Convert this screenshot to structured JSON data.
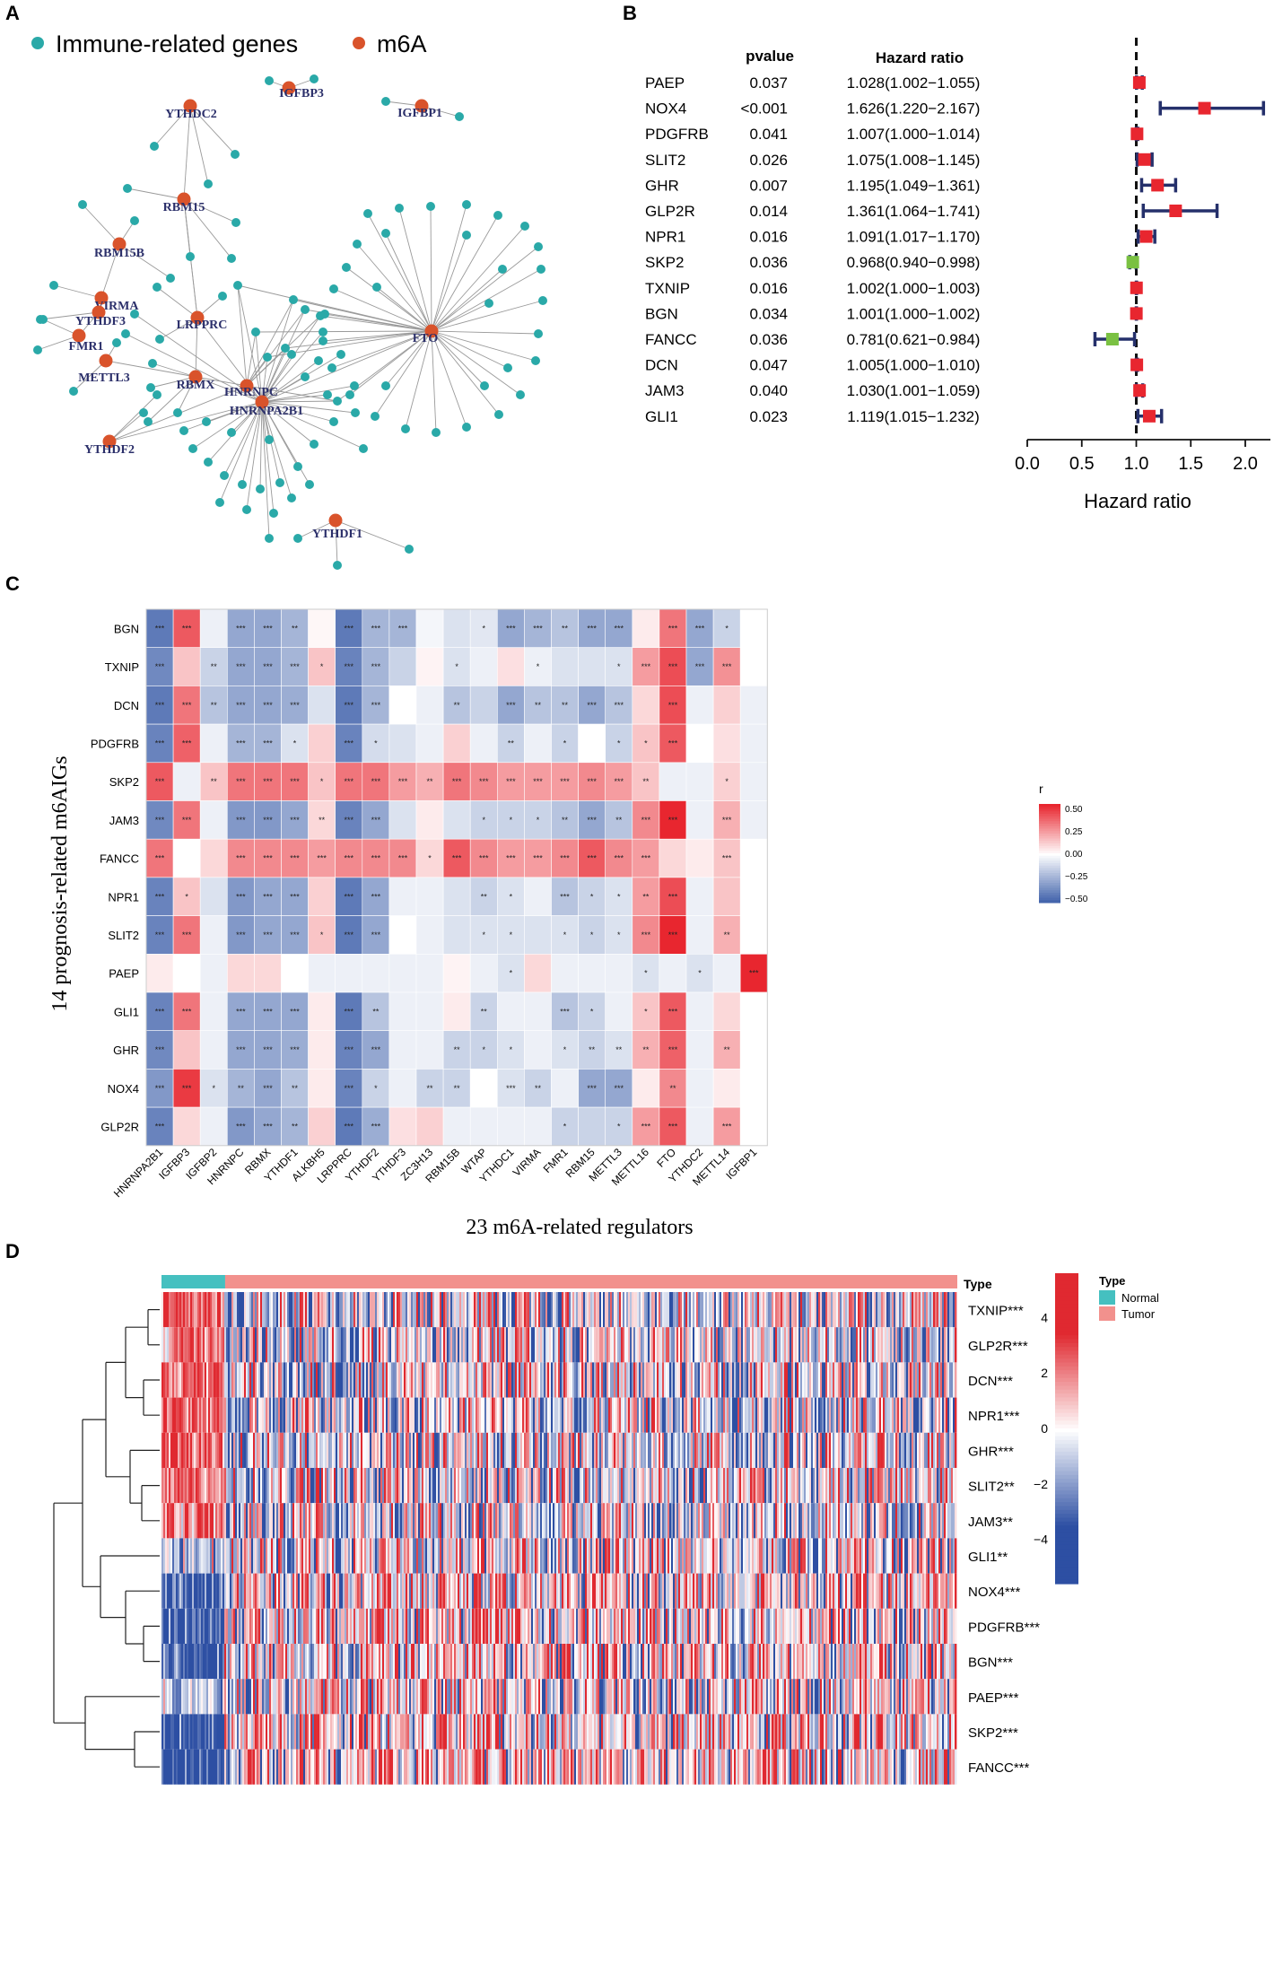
{
  "panel_letters": {
    "a": "A",
    "b": "B",
    "c": "C",
    "d": "D"
  },
  "colors": {
    "immune": "#2aa9a8",
    "m6a": "#d9532b",
    "hr_high": "#e8262f",
    "hr_low": "#7ac142",
    "ci_line": "#25306b",
    "heat_pos": "#e8262f",
    "heat_neg": "#3a5da8",
    "normal": "#45c0c0",
    "tumor": "#f2918d"
  },
  "chart_data": [
    {
      "type": "network",
      "panel": "A",
      "legend": [
        "Immune-related genes",
        "m6A"
      ],
      "nodes": [
        {
          "id": "IGFBP3",
          "group": "m6A"
        },
        {
          "id": "IGFBP1",
          "group": "m6A"
        },
        {
          "id": "YTHDC2",
          "group": "m6A"
        },
        {
          "id": "RBM15",
          "group": "m6A"
        },
        {
          "id": "RBM15B",
          "group": "m6A"
        },
        {
          "id": "VIRMA",
          "group": "m6A"
        },
        {
          "id": "YTHDF3",
          "group": "m6A"
        },
        {
          "id": "FMR1",
          "group": "m6A"
        },
        {
          "id": "METTL3",
          "group": "m6A"
        },
        {
          "id": "LRPPRC",
          "group": "m6A"
        },
        {
          "id": "RBMX",
          "group": "m6A"
        },
        {
          "id": "HNRNPC",
          "group": "m6A"
        },
        {
          "id": "HNRNPA2B1",
          "group": "m6A"
        },
        {
          "id": "YTHDF2",
          "group": "m6A"
        },
        {
          "id": "FTO",
          "group": "m6A"
        },
        {
          "id": "YTHDF1",
          "group": "m6A"
        }
      ]
    },
    {
      "type": "forest",
      "panel": "B",
      "col_headers": {
        "p": "pvalue",
        "hr": "Hazard ratio"
      },
      "xlabel": "Hazard ratio",
      "xlim": [
        0,
        2.15
      ],
      "xticks": [
        "0.0",
        "0.5",
        "1.0",
        "1.5",
        "2.0"
      ],
      "rows": [
        {
          "gene": "PAEP",
          "p": "0.037",
          "hr_text": "1.028(1.002−1.055)",
          "hr": 1.028,
          "lo": 1.002,
          "hi": 1.055
        },
        {
          "gene": "NOX4",
          "p": "<0.001",
          "hr_text": "1.626(1.220−2.167)",
          "hr": 1.626,
          "lo": 1.22,
          "hi": 2.167
        },
        {
          "gene": "PDGFRB",
          "p": "0.041",
          "hr_text": "1.007(1.000−1.014)",
          "hr": 1.007,
          "lo": 1.0,
          "hi": 1.014
        },
        {
          "gene": "SLIT2",
          "p": "0.026",
          "hr_text": "1.075(1.008−1.145)",
          "hr": 1.075,
          "lo": 1.008,
          "hi": 1.145
        },
        {
          "gene": "GHR",
          "p": "0.007",
          "hr_text": "1.195(1.049−1.361)",
          "hr": 1.195,
          "lo": 1.049,
          "hi": 1.361
        },
        {
          "gene": "GLP2R",
          "p": "0.014",
          "hr_text": "1.361(1.064−1.741)",
          "hr": 1.361,
          "lo": 1.064,
          "hi": 1.741
        },
        {
          "gene": "NPR1",
          "p": "0.016",
          "hr_text": "1.091(1.017−1.170)",
          "hr": 1.091,
          "lo": 1.017,
          "hi": 1.17
        },
        {
          "gene": "SKP2",
          "p": "0.036",
          "hr_text": "0.968(0.940−0.998)",
          "hr": 0.968,
          "lo": 0.94,
          "hi": 0.998
        },
        {
          "gene": "TXNIP",
          "p": "0.016",
          "hr_text": "1.002(1.000−1.003)",
          "hr": 1.002,
          "lo": 1.0,
          "hi": 1.003
        },
        {
          "gene": "BGN",
          "p": "0.034",
          "hr_text": "1.001(1.000−1.002)",
          "hr": 1.001,
          "lo": 1.0,
          "hi": 1.002
        },
        {
          "gene": "FANCC",
          "p": "0.036",
          "hr_text": "0.781(0.621−0.984)",
          "hr": 0.781,
          "lo": 0.621,
          "hi": 0.984
        },
        {
          "gene": "DCN",
          "p": "0.047",
          "hr_text": "1.005(1.000−1.010)",
          "hr": 1.005,
          "lo": 1.0,
          "hi": 1.01
        },
        {
          "gene": "JAM3",
          "p": "0.040",
          "hr_text": "1.030(1.001−1.059)",
          "hr": 1.03,
          "lo": 1.001,
          "hi": 1.059
        },
        {
          "gene": "GLI1",
          "p": "0.023",
          "hr_text": "1.119(1.015−1.232)",
          "hr": 1.119,
          "lo": 1.015,
          "hi": 1.232
        }
      ]
    },
    {
      "type": "heatmap",
      "panel": "C",
      "ylabel": "14 prognosis-related m6AIGs",
      "xlabel": "23 m6A-related regulators",
      "legend_title": "r",
      "legend_ticks": [
        "0.50",
        "0.25",
        "0.00",
        "−0.25",
        "−0.50"
      ],
      "rows": [
        "BGN",
        "TXNIP",
        "DCN",
        "PDGFRB",
        "SKP2",
        "JAM3",
        "FANCC",
        "NPR1",
        "SLIT2",
        "PAEP",
        "GLI1",
        "GHR",
        "NOX4",
        "GLP2R"
      ],
      "cols": [
        "HNRNPA2B1",
        "IGFBP3",
        "IGFBP2",
        "HNRNPC",
        "RBMX",
        "YTHDF1",
        "ALKBH5",
        "LRPPRC",
        "YTHDF2",
        "YTHDF3",
        "ZC3H13",
        "RBM15B",
        "WTAP",
        "YTHDC1",
        "VIRMA",
        "FMR1",
        "RBM15",
        "METTL3",
        "METTL16",
        "FTO",
        "YTHDC2",
        "METTL14",
        "IGFBP1"
      ],
      "values": [
        [
          -0.45,
          0.42,
          -0.05,
          -0.3,
          -0.3,
          -0.25,
          0.02,
          -0.45,
          -0.25,
          -0.25,
          -0.03,
          -0.1,
          -0.08,
          -0.3,
          -0.25,
          -0.2,
          -0.3,
          -0.3,
          0.05,
          0.35,
          -0.3,
          -0.15,
          0.0
        ],
        [
          -0.4,
          0.15,
          -0.15,
          -0.3,
          -0.3,
          -0.25,
          0.15,
          -0.42,
          -0.25,
          -0.15,
          0.03,
          -0.1,
          -0.05,
          0.08,
          -0.05,
          -0.1,
          -0.1,
          -0.1,
          0.25,
          0.45,
          -0.3,
          0.28,
          0.0
        ],
        [
          -0.45,
          0.35,
          -0.2,
          -0.3,
          -0.3,
          -0.28,
          -0.1,
          -0.45,
          -0.25,
          0.0,
          -0.05,
          -0.2,
          -0.15,
          -0.3,
          -0.2,
          -0.2,
          -0.3,
          -0.2,
          0.1,
          0.45,
          -0.05,
          0.12,
          -0.05
        ],
        [
          -0.42,
          0.4,
          -0.05,
          -0.25,
          -0.25,
          -0.1,
          0.12,
          -0.42,
          -0.12,
          -0.1,
          -0.05,
          0.12,
          -0.05,
          -0.15,
          -0.05,
          -0.15,
          0.0,
          -0.15,
          0.15,
          0.42,
          0.0,
          0.08,
          -0.05
        ],
        [
          0.42,
          -0.05,
          0.15,
          0.35,
          0.35,
          0.35,
          0.15,
          0.35,
          0.35,
          0.25,
          0.2,
          0.35,
          0.3,
          0.25,
          0.25,
          0.25,
          0.3,
          0.25,
          0.15,
          -0.05,
          -0.05,
          0.12,
          -0.05
        ],
        [
          -0.4,
          0.35,
          -0.05,
          -0.35,
          -0.35,
          -0.3,
          0.1,
          -0.42,
          -0.3,
          -0.1,
          0.05,
          -0.1,
          -0.15,
          -0.15,
          -0.15,
          -0.2,
          -0.3,
          -0.2,
          0.3,
          0.55,
          -0.05,
          0.2,
          -0.05
        ],
        [
          0.35,
          0.0,
          0.1,
          0.3,
          0.3,
          0.3,
          0.25,
          0.3,
          0.3,
          0.3,
          0.1,
          0.42,
          0.3,
          0.25,
          0.25,
          0.3,
          0.42,
          0.3,
          0.25,
          0.1,
          0.05,
          0.15,
          0.0
        ],
        [
          -0.42,
          0.15,
          -0.1,
          -0.35,
          -0.3,
          -0.3,
          0.12,
          -0.45,
          -0.3,
          -0.05,
          -0.05,
          -0.1,
          -0.15,
          -0.1,
          -0.05,
          -0.2,
          -0.15,
          -0.1,
          0.25,
          0.45,
          -0.05,
          0.15,
          0.0
        ],
        [
          -0.42,
          0.35,
          -0.05,
          -0.35,
          -0.3,
          -0.3,
          0.15,
          -0.45,
          -0.3,
          0.0,
          -0.05,
          -0.1,
          -0.1,
          -0.1,
          -0.1,
          -0.1,
          -0.15,
          -0.1,
          0.3,
          0.55,
          -0.05,
          0.2,
          0.0
        ],
        [
          0.05,
          0.0,
          -0.05,
          0.1,
          0.1,
          0.0,
          -0.05,
          -0.05,
          -0.05,
          -0.05,
          -0.05,
          0.03,
          -0.05,
          -0.1,
          0.1,
          -0.05,
          -0.05,
          -0.05,
          -0.1,
          -0.05,
          -0.1,
          -0.05,
          0.55
        ],
        [
          -0.42,
          0.35,
          -0.05,
          -0.3,
          -0.3,
          -0.3,
          0.05,
          -0.45,
          -0.2,
          -0.05,
          -0.05,
          0.05,
          -0.15,
          -0.05,
          -0.05,
          -0.2,
          -0.15,
          -0.05,
          0.15,
          0.42,
          -0.05,
          0.1,
          0.0
        ],
        [
          -0.4,
          0.15,
          -0.05,
          -0.3,
          -0.3,
          -0.28,
          0.05,
          -0.42,
          -0.3,
          -0.05,
          -0.05,
          -0.15,
          -0.15,
          -0.1,
          -0.05,
          -0.1,
          -0.15,
          -0.1,
          0.2,
          0.4,
          -0.05,
          0.2,
          0.0
        ],
        [
          -0.35,
          0.5,
          -0.1,
          -0.25,
          -0.3,
          -0.2,
          0.05,
          -0.42,
          -0.15,
          -0.05,
          -0.15,
          -0.15,
          0.0,
          -0.1,
          -0.15,
          -0.05,
          -0.3,
          -0.3,
          0.05,
          0.3,
          -0.05,
          0.05,
          0.0
        ],
        [
          -0.42,
          0.1,
          -0.05,
          -0.35,
          -0.3,
          -0.25,
          0.12,
          -0.45,
          -0.28,
          0.08,
          0.12,
          -0.05,
          -0.05,
          -0.05,
          -0.05,
          -0.15,
          -0.15,
          -0.15,
          0.25,
          0.42,
          -0.05,
          0.25,
          0.0
        ]
      ],
      "stars": [
        [
          "***",
          "***",
          "",
          "***",
          "***",
          "**",
          "",
          "***",
          "***",
          "***",
          "",
          "",
          "*",
          "***",
          "***",
          "**",
          "***",
          "***",
          "",
          "***",
          "***",
          "*",
          ""
        ],
        [
          "***",
          "",
          "**",
          "***",
          "***",
          "***",
          "*",
          "***",
          "***",
          "",
          "",
          "*",
          "",
          "",
          "*",
          "",
          "",
          "*",
          "***",
          "***",
          "***",
          "***",
          ""
        ],
        [
          "***",
          "***",
          "**",
          "***",
          "***",
          "***",
          "",
          "***",
          "***",
          "",
          "",
          "**",
          "",
          "***",
          "**",
          "**",
          "***",
          "***",
          "",
          "***",
          "",
          "",
          ""
        ],
        [
          "***",
          "***",
          "",
          "***",
          "***",
          "*",
          "",
          "***",
          "*",
          "",
          "",
          "",
          "",
          "**",
          "",
          "*",
          "",
          "*",
          "*",
          "***",
          "",
          "",
          ""
        ],
        [
          "***",
          "",
          "**",
          "***",
          "***",
          "***",
          "*",
          "***",
          "***",
          "***",
          "**",
          "***",
          "***",
          "***",
          "***",
          "***",
          "***",
          "***",
          "**",
          "",
          "",
          "*",
          ""
        ],
        [
          "***",
          "***",
          "",
          "***",
          "***",
          "***",
          "**",
          "***",
          "***",
          "",
          "",
          "",
          "*",
          "*",
          "*",
          "**",
          "***",
          "**",
          "***",
          "***",
          "",
          "***",
          ""
        ],
        [
          "***",
          "",
          "",
          "***",
          "***",
          "***",
          "***",
          "***",
          "***",
          "***",
          "*",
          "***",
          "***",
          "***",
          "***",
          "***",
          "***",
          "***",
          "***",
          "",
          "",
          "***",
          ""
        ],
        [
          "***",
          "*",
          "",
          "***",
          "***",
          "***",
          "",
          "***",
          "***",
          "",
          "",
          "",
          "**",
          "*",
          "",
          "***",
          "*",
          "*",
          "**",
          "***",
          "",
          "",
          ""
        ],
        [
          "***",
          "***",
          "",
          "***",
          "***",
          "***",
          "*",
          "***",
          "***",
          "",
          "",
          "",
          "*",
          "*",
          "",
          "*",
          "*",
          "*",
          "***",
          "***",
          "",
          "**",
          ""
        ],
        [
          "",
          "",
          "",
          "",
          "",
          "",
          "",
          "",
          "",
          "",
          "",
          "",
          "",
          "*",
          "",
          "",
          "",
          "",
          "*",
          "",
          "*",
          "",
          "***"
        ],
        [
          "***",
          "***",
          "",
          "***",
          "***",
          "***",
          "",
          "***",
          "**",
          "",
          "",
          "",
          "**",
          "",
          "",
          "***",
          "*",
          "",
          "*",
          "***",
          "",
          "",
          ""
        ],
        [
          "***",
          "",
          "",
          "***",
          "***",
          "***",
          "",
          "***",
          "***",
          "",
          "",
          "**",
          "*",
          "*",
          "",
          "*",
          "**",
          "**",
          "**",
          "***",
          "",
          "**",
          ""
        ],
        [
          "***",
          "***",
          "*",
          "**",
          "***",
          "**",
          "",
          "***",
          "*",
          "",
          "**",
          "**",
          "",
          "***",
          "**",
          "",
          "***",
          "***",
          "",
          "**",
          "",
          "",
          ""
        ],
        [
          "***",
          "",
          "",
          "***",
          "***",
          "**",
          "",
          "***",
          "***",
          "",
          "",
          "",
          "",
          "",
          "",
          "*",
          "",
          "*",
          "***",
          "***",
          "",
          "***",
          ""
        ]
      ]
    },
    {
      "type": "heatmap",
      "panel": "D",
      "annotation_label": "Type",
      "legend_type_title": "Type",
      "groups": [
        "Normal",
        "Tumor"
      ],
      "group_fraction": [
        0.08,
        0.92
      ],
      "color_ticks": [
        "4",
        "2",
        "0",
        "−2",
        "−4"
      ],
      "vlim": [
        -5.6,
        5.6
      ],
      "genes": [
        "TXNIP***",
        "GLP2R***",
        "DCN***",
        "NPR1***",
        "GHR***",
        "SLIT2**",
        "JAM3**",
        "GLI1**",
        "NOX4***",
        "PDGFRB***",
        "BGN***",
        "PAEP***",
        "SKP2***",
        "FANCC***"
      ],
      "normal_mean_z": [
        2.5,
        2.5,
        2.5,
        2.5,
        2.5,
        2.0,
        2.0,
        -1.0,
        -3.0,
        -3.0,
        -3.0,
        -1.0,
        -4.0,
        -4.0
      ]
    }
  ]
}
